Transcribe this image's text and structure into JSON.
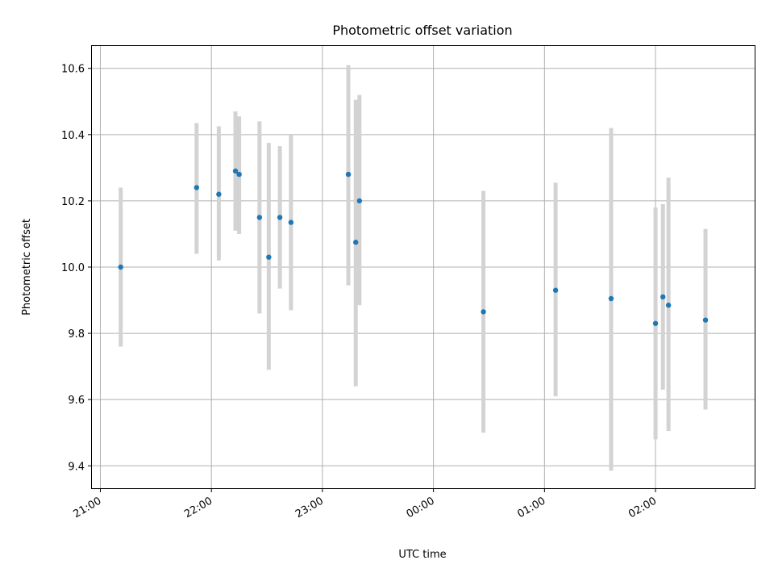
{
  "chart_data": {
    "type": "scatter",
    "title": "Photometric offset variation",
    "xlabel": "UTC time",
    "ylabel": "Photometric offset",
    "x_tick_labels": [
      "21:00",
      "22:00",
      "23:00",
      "00:00",
      "01:00",
      "02:00"
    ],
    "x_tick_values": [
      "21:00",
      "22:00",
      "23:00",
      "00:00",
      "01:00",
      "02:00"
    ],
    "x_axis_range": [
      "20:55",
      "02:54"
    ],
    "y_tick_labels": [
      "9.4",
      "9.6",
      "9.8",
      "10.0",
      "10.2",
      "10.4",
      "10.6"
    ],
    "ylim": [
      9.33,
      10.67
    ],
    "grid": true,
    "series": [
      {
        "marker_color": "#1f77b4",
        "errorbar_color": "#d3d3d3",
        "points": [
          {
            "x": "21:11",
            "y": 10.0,
            "low": 9.76,
            "high": 10.24
          },
          {
            "x": "21:52",
            "y": 10.24,
            "low": 10.04,
            "high": 10.435
          },
          {
            "x": "22:04",
            "y": 10.22,
            "low": 10.02,
            "high": 10.425
          },
          {
            "x": "22:13",
            "y": 10.29,
            "low": 10.11,
            "high": 10.47
          },
          {
            "x": "22:15",
            "y": 10.28,
            "low": 10.1,
            "high": 10.455
          },
          {
            "x": "22:26",
            "y": 10.15,
            "low": 9.86,
            "high": 10.44
          },
          {
            "x": "22:31",
            "y": 10.03,
            "low": 9.69,
            "high": 10.375
          },
          {
            "x": "22:37",
            "y": 10.15,
            "low": 9.935,
            "high": 10.365
          },
          {
            "x": "22:43",
            "y": 10.135,
            "low": 9.87,
            "high": 10.4
          },
          {
            "x": "23:14",
            "y": 10.28,
            "low": 9.945,
            "high": 10.61
          },
          {
            "x": "23:18",
            "y": 10.075,
            "low": 9.64,
            "high": 10.505
          },
          {
            "x": "23:20",
            "y": 10.2,
            "low": 9.885,
            "high": 10.52
          },
          {
            "x": "00:27",
            "y": 9.865,
            "low": 9.5,
            "high": 10.23
          },
          {
            "x": "01:06",
            "y": 9.93,
            "low": 9.61,
            "high": 10.255
          },
          {
            "x": "01:36",
            "y": 9.905,
            "low": 9.385,
            "high": 10.42
          },
          {
            "x": "02:00",
            "y": 9.83,
            "low": 9.48,
            "high": 10.18
          },
          {
            "x": "02:04",
            "y": 9.91,
            "low": 9.63,
            "high": 10.19
          },
          {
            "x": "02:07",
            "y": 9.885,
            "low": 9.505,
            "high": 10.27
          },
          {
            "x": "02:27",
            "y": 9.84,
            "low": 9.57,
            "high": 10.115
          }
        ]
      }
    ]
  }
}
